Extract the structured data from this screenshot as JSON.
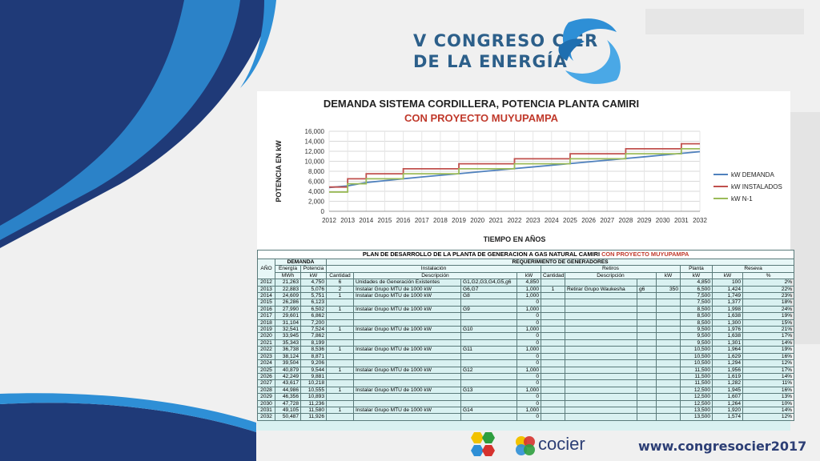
{
  "header": {
    "line1": "V CONGRESO CIER",
    "line2": "DE LA ENERGÍA"
  },
  "footer": {
    "url": "www.congresocier2017",
    "brand": "cocier"
  },
  "colors": {
    "demand": "#4f81bd",
    "installed": "#c0504d",
    "n1": "#9bbb59",
    "navy": "#1f3a78",
    "cyan": "#2e8fd6"
  },
  "chart_data": {
    "type": "line",
    "title": "DEMANDA SISTEMA CORDILLERA, POTENCIA PLANTA CAMIRI",
    "subtitle": "CON PROYECTO MUYUPAMPA",
    "xlabel": "TIEMPO EN AÑOS",
    "ylabel": "POTENCIA EN kW",
    "ylim": [
      0,
      16000
    ],
    "yticks": [
      "0",
      "2,000",
      "4,000",
      "6,000",
      "8,000",
      "10,000",
      "12,000",
      "14,000",
      "16,000"
    ],
    "x": [
      2012,
      2013,
      2014,
      2015,
      2016,
      2017,
      2018,
      2019,
      2020,
      2021,
      2022,
      2023,
      2024,
      2025,
      2026,
      2027,
      2028,
      2029,
      2030,
      2031,
      2032
    ],
    "grid": true,
    "legend_position": "right",
    "series": [
      {
        "name": "kW DEMANDA",
        "step": false,
        "values": [
          4750,
          5076,
          5751,
          6123,
          6502,
          6862,
          7200,
          7524,
          7862,
          8199,
          8536,
          8871,
          9206,
          9544,
          9881,
          10218,
          10555,
          10893,
          11236,
          11580,
          11926
        ]
      },
      {
        "name": "kW INSTALADOS",
        "step": true,
        "values": [
          4850,
          6500,
          7500,
          7500,
          8500,
          8500,
          8500,
          9500,
          9500,
          9500,
          10500,
          10500,
          10500,
          11500,
          11500,
          11500,
          12500,
          12500,
          12500,
          13500,
          13500
        ]
      },
      {
        "name": "kW N-1",
        "step": true,
        "values": [
          3850,
          5500,
          6500,
          6500,
          7500,
          7500,
          7500,
          8500,
          8500,
          8500,
          9500,
          9500,
          9500,
          10500,
          10500,
          10500,
          11500,
          11500,
          11500,
          12500,
          12500
        ]
      }
    ]
  },
  "table": {
    "title_black": "PLAN DE DESARROLLO DE LA PLANTA DE GENERACION A GAS NATURAL CAMIRI",
    "title_red": "CON PROYECTO MUYUPAMPA",
    "h_ano": "AÑO",
    "h_demanda": "DEMANDA",
    "h_requerimiento": "REQUERIMIENTO DE GENERADORES",
    "h_energia": "Energía",
    "h_potencia": "Potencia",
    "h_instalacion": "Instalación",
    "h_retiros": "Retiros",
    "h_planta": "Planta",
    "h_reseva": "Reseva",
    "u_mwh": "MWh",
    "u_kw": "kW",
    "u_cantidad": "Cantidad",
    "u_descripcion": "Descripción",
    "u_kw2": "kW",
    "u_cantidad2": "Cantidad",
    "u_descripcion2": "Descripción",
    "u_kw3": "kW",
    "u_kw4": "kW",
    "u_kw5": "kW",
    "u_pct": "%",
    "rows": [
      {
        "ano": "2012",
        "energia": "21,263",
        "potencia": "4,750",
        "cant": "6",
        "desc": "Unidades de Generación Existentes",
        "unidad": "G1,G2,G3,G4,G5,g6",
        "kw": "4,850",
        "rcant": "",
        "rdesc": "",
        "runit": "",
        "rkw": "",
        "planta": "4,850",
        "reskw": "100",
        "pct": "2%"
      },
      {
        "ano": "2013",
        "energia": "22,883",
        "potencia": "5,076",
        "cant": "2",
        "desc": "Instalar Grupo MTU de 1000 kW",
        "unidad": "G6,G7",
        "kw": "1,000",
        "rcant": "1",
        "rdesc": "Retirar Grupo Waukesha",
        "runit": "g6",
        "rkw": "350",
        "planta": "6,500",
        "reskw": "1,424",
        "pct": "22%"
      },
      {
        "ano": "2014",
        "energia": "24,609",
        "potencia": "5,751",
        "cant": "1",
        "desc": "Instalar Grupo MTU de 1000 kW",
        "unidad": "G8",
        "kw": "1,000",
        "rcant": "",
        "rdesc": "",
        "runit": "",
        "rkw": "",
        "planta": "7,500",
        "reskw": "1,749",
        "pct": "23%"
      },
      {
        "ano": "2015",
        "energia": "26,286",
        "potencia": "6,123",
        "cant": "",
        "desc": "",
        "unidad": "",
        "kw": "0",
        "rcant": "",
        "rdesc": "",
        "runit": "",
        "rkw": "",
        "planta": "7,500",
        "reskw": "1,377",
        "pct": "18%"
      },
      {
        "ano": "2016",
        "energia": "27,990",
        "potencia": "6,502",
        "cant": "1",
        "desc": "Instalar Grupo MTU de 1000 kW",
        "unidad": "G9",
        "kw": "1,000",
        "rcant": "",
        "rdesc": "",
        "runit": "",
        "rkw": "",
        "planta": "8,500",
        "reskw": "1,998",
        "pct": "24%"
      },
      {
        "ano": "2017",
        "energia": "29,601",
        "potencia": "6,862",
        "cant": "",
        "desc": "",
        "unidad": "",
        "kw": "0",
        "rcant": "",
        "rdesc": "",
        "runit": "",
        "rkw": "",
        "planta": "8,500",
        "reskw": "1,638",
        "pct": "19%"
      },
      {
        "ano": "2018",
        "energia": "31,104",
        "potencia": "7,200",
        "cant": "",
        "desc": "",
        "unidad": "",
        "kw": "0",
        "rcant": "",
        "rdesc": "",
        "runit": "",
        "rkw": "",
        "planta": "8,500",
        "reskw": "1,300",
        "pct": "15%"
      },
      {
        "ano": "2019",
        "energia": "32,541",
        "potencia": "7,524",
        "cant": "1",
        "desc": "Instalar Grupo MTU de 1000 kW",
        "unidad": "G10",
        "kw": "1,000",
        "rcant": "",
        "rdesc": "",
        "runit": "",
        "rkw": "",
        "planta": "9,500",
        "reskw": "1,976",
        "pct": "21%"
      },
      {
        "ano": "2020",
        "energia": "33,945",
        "potencia": "7,862",
        "cant": "",
        "desc": "",
        "unidad": "",
        "kw": "0",
        "rcant": "",
        "rdesc": "",
        "runit": "",
        "rkw": "",
        "planta": "9,500",
        "reskw": "1,638",
        "pct": "17%"
      },
      {
        "ano": "2021",
        "energia": "35,343",
        "potencia": "8,199",
        "cant": "",
        "desc": "",
        "unidad": "",
        "kw": "0",
        "rcant": "",
        "rdesc": "",
        "runit": "",
        "rkw": "",
        "planta": "9,500",
        "reskw": "1,301",
        "pct": "14%"
      },
      {
        "ano": "2022",
        "energia": "36,738",
        "potencia": "8,536",
        "cant": "1",
        "desc": "Instalar Grupo MTU de 1000 kW",
        "unidad": "G11",
        "kw": "1,000",
        "rcant": "",
        "rdesc": "",
        "runit": "",
        "rkw": "",
        "planta": "10,500",
        "reskw": "1,964",
        "pct": "19%"
      },
      {
        "ano": "2023",
        "energia": "38,124",
        "potencia": "8,871",
        "cant": "",
        "desc": "",
        "unidad": "",
        "kw": "0",
        "rcant": "",
        "rdesc": "",
        "runit": "",
        "rkw": "",
        "planta": "10,500",
        "reskw": "1,629",
        "pct": "16%"
      },
      {
        "ano": "2024",
        "energia": "39,504",
        "potencia": "9,206",
        "cant": "",
        "desc": "",
        "unidad": "",
        "kw": "0",
        "rcant": "",
        "rdesc": "",
        "runit": "",
        "rkw": "",
        "planta": "10,500",
        "reskw": "1,294",
        "pct": "12%"
      },
      {
        "ano": "2025",
        "energia": "40,879",
        "potencia": "9,544",
        "cant": "1",
        "desc": "Instalar Grupo MTU de 1000 kW",
        "unidad": "G12",
        "kw": "1,000",
        "rcant": "",
        "rdesc": "",
        "runit": "",
        "rkw": "",
        "planta": "11,500",
        "reskw": "1,956",
        "pct": "17%"
      },
      {
        "ano": "2026",
        "energia": "42,249",
        "potencia": "9,881",
        "cant": "",
        "desc": "",
        "unidad": "",
        "kw": "0",
        "rcant": "",
        "rdesc": "",
        "runit": "",
        "rkw": "",
        "planta": "11,500",
        "reskw": "1,619",
        "pct": "14%"
      },
      {
        "ano": "2027",
        "energia": "43,617",
        "potencia": "10,218",
        "cant": "",
        "desc": "",
        "unidad": "",
        "kw": "0",
        "rcant": "",
        "rdesc": "",
        "runit": "",
        "rkw": "",
        "planta": "11,500",
        "reskw": "1,282",
        "pct": "11%"
      },
      {
        "ano": "2028",
        "energia": "44,986",
        "potencia": "10,555",
        "cant": "1",
        "desc": "Instalar Grupo MTU de 1000 kW",
        "unidad": "G13",
        "kw": "1,000",
        "rcant": "",
        "rdesc": "",
        "runit": "",
        "rkw": "",
        "planta": "12,500",
        "reskw": "1,945",
        "pct": "16%"
      },
      {
        "ano": "2029",
        "energia": "46,356",
        "potencia": "10,893",
        "cant": "",
        "desc": "",
        "unidad": "",
        "kw": "0",
        "rcant": "",
        "rdesc": "",
        "runit": "",
        "rkw": "",
        "planta": "12,500",
        "reskw": "1,607",
        "pct": "13%"
      },
      {
        "ano": "2030",
        "energia": "47,728",
        "potencia": "11,236",
        "cant": "",
        "desc": "",
        "unidad": "",
        "kw": "0",
        "rcant": "",
        "rdesc": "",
        "runit": "",
        "rkw": "",
        "planta": "12,500",
        "reskw": "1,264",
        "pct": "10%"
      },
      {
        "ano": "2031",
        "energia": "49,105",
        "potencia": "11,580",
        "cant": "1",
        "desc": "Instalar Grupo MTU de 1000 kW",
        "unidad": "G14",
        "kw": "1,000",
        "rcant": "",
        "rdesc": "",
        "runit": "",
        "rkw": "",
        "planta": "13,500",
        "reskw": "1,920",
        "pct": "14%"
      },
      {
        "ano": "2032",
        "energia": "50,487",
        "potencia": "11,926",
        "cant": "",
        "desc": "",
        "unidad": "",
        "kw": "0",
        "rcant": "",
        "rdesc": "",
        "runit": "",
        "rkw": "",
        "planta": "13,500",
        "reskw": "1,574",
        "pct": "12%"
      }
    ]
  }
}
